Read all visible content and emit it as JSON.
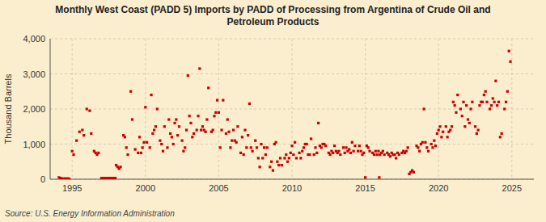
{
  "chart_data": {
    "type": "scatter",
    "title": "Monthly West Coast (PADD 5) Imports by PADD of Processing from Argentina of Crude Oil and\nPetroleum Products",
    "ylabel": "Thousand Barrels",
    "source": "Source: U.S. Energy Information Administration",
    "color": "#cc0000",
    "marker": "square",
    "grid": true,
    "xlim": [
      1993.5,
      2026.5
    ],
    "ylim": [
      0,
      4000
    ],
    "xticks": [
      1995,
      2000,
      2005,
      2010,
      2015,
      2020,
      2025
    ],
    "yticks": [
      0,
      {
        "value": 1000,
        "label": "1,000"
      },
      {
        "value": 2000,
        "label": "2,000"
      },
      {
        "value": 3000,
        "label": "3,000"
      },
      {
        "value": 4000,
        "label": "4,000"
      }
    ],
    "x": [
      1994.1,
      1994.2,
      1994.3,
      1994.4,
      1994.5,
      1994.6,
      1994.7,
      1994.8,
      1995.0,
      1995.1,
      1995.3,
      1995.5,
      1995.7,
      1995.8,
      1996.0,
      1996.2,
      1996.3,
      1996.5,
      1996.6,
      1996.7,
      1996.8,
      1997.0,
      1997.1,
      1997.2,
      1997.3,
      1997.4,
      1997.5,
      1997.6,
      1997.7,
      1997.8,
      1997.9,
      1997.95,
      1998.0,
      1998.1,
      1998.2,
      1998.3,
      1998.5,
      1998.6,
      1998.7,
      1998.8,
      1999.0,
      1999.1,
      1999.3,
      1999.5,
      1999.6,
      1999.7,
      1999.8,
      1999.9,
      2000.0,
      2000.1,
      2000.3,
      2000.4,
      2000.5,
      2000.6,
      2000.7,
      2000.8,
      2001.0,
      2001.1,
      2001.2,
      2001.3,
      2001.5,
      2001.6,
      2001.7,
      2001.8,
      2001.9,
      2002.0,
      2002.1,
      2002.2,
      2002.3,
      2002.5,
      2002.6,
      2002.7,
      2002.8,
      2002.9,
      2003.0,
      2003.1,
      2003.2,
      2003.3,
      2003.5,
      2003.6,
      2003.7,
      2003.8,
      2003.9,
      2004.0,
      2004.1,
      2004.2,
      2004.3,
      2004.5,
      2004.6,
      2004.7,
      2004.8,
      2004.9,
      2005.0,
      2005.1,
      2005.2,
      2005.3,
      2005.5,
      2005.6,
      2005.7,
      2005.8,
      2005.9,
      2006.0,
      2006.1,
      2006.2,
      2006.3,
      2006.5,
      2006.6,
      2006.7,
      2006.8,
      2006.9,
      2007.0,
      2007.1,
      2007.2,
      2007.3,
      2007.5,
      2007.6,
      2007.7,
      2007.8,
      2007.9,
      2008.0,
      2008.1,
      2008.2,
      2008.3,
      2008.5,
      2008.6,
      2008.7,
      2008.8,
      2008.9,
      2009.0,
      2009.1,
      2009.2,
      2009.3,
      2009.5,
      2009.6,
      2009.7,
      2009.8,
      2009.9,
      2010.0,
      2010.1,
      2010.2,
      2010.3,
      2010.5,
      2010.6,
      2010.7,
      2010.8,
      2010.9,
      2011.0,
      2011.1,
      2011.2,
      2011.3,
      2011.5,
      2011.6,
      2011.7,
      2011.8,
      2011.9,
      2012.0,
      2012.1,
      2012.2,
      2012.3,
      2012.5,
      2012.6,
      2012.7,
      2012.8,
      2012.9,
      2013.0,
      2013.1,
      2013.2,
      2013.3,
      2013.5,
      2013.6,
      2013.7,
      2013.8,
      2013.9,
      2014.0,
      2014.1,
      2014.2,
      2014.3,
      2014.5,
      2014.6,
      2014.7,
      2014.8,
      2014.9,
      2015.0,
      2015.1,
      2015.2,
      2015.3,
      2015.5,
      2015.6,
      2015.7,
      2015.8,
      2015.9,
      2015.95,
      2016.0,
      2016.1,
      2016.2,
      2016.3,
      2016.5,
      2016.6,
      2016.7,
      2016.8,
      2016.9,
      2017.0,
      2017.1,
      2017.2,
      2017.3,
      2017.5,
      2017.6,
      2017.7,
      2017.8,
      2017.9,
      2018.0,
      2018.1,
      2018.2,
      2018.3,
      2018.5,
      2018.6,
      2018.7,
      2018.8,
      2018.9,
      2019.0,
      2019.1,
      2019.2,
      2019.3,
      2019.5,
      2019.6,
      2019.7,
      2019.8,
      2019.9,
      2020.0,
      2020.1,
      2020.2,
      2020.3,
      2020.5,
      2020.6,
      2020.7,
      2020.8,
      2020.9,
      2021.0,
      2021.1,
      2021.2,
      2021.3,
      2021.5,
      2021.6,
      2021.7,
      2021.8,
      2021.9,
      2022.0,
      2022.1,
      2022.2,
      2022.3,
      2022.5,
      2022.6,
      2022.7,
      2022.8,
      2022.9,
      2023.0,
      2023.1,
      2023.2,
      2023.3,
      2023.5,
      2023.6,
      2023.7,
      2023.8,
      2023.9,
      2024.0,
      2024.1,
      2024.2,
      2024.3,
      2024.5,
      2024.6,
      2024.7,
      2024.8,
      2024.9
    ],
    "values": [
      50,
      30,
      20,
      10,
      20,
      10,
      20,
      10,
      800,
      700,
      1100,
      1350,
      1400,
      1250,
      2000,
      1950,
      1300,
      800,
      750,
      700,
      750,
      30,
      30,
      30,
      30,
      30,
      30,
      30,
      30,
      30,
      30,
      30,
      400,
      350,
      300,
      350,
      1250,
      1200,
      900,
      700,
      2500,
      1700,
      850,
      750,
      1200,
      750,
      900,
      1050,
      2050,
      1050,
      900,
      2400,
      1300,
      1400,
      1500,
      2000,
      1100,
      1000,
      800,
      1500,
      900,
      1700,
      1300,
      1200,
      1000,
      1600,
      1700,
      1250,
      1500,
      1100,
      800,
      900,
      1400,
      2950,
      1800,
      1600,
      1200,
      1300,
      1400,
      1800,
      3150,
      1400,
      1500,
      1400,
      1350,
      1700,
      2600,
      1350,
      1400,
      1800,
      1900,
      2250,
      1900,
      900,
      1400,
      2250,
      1300,
      1700,
      1350,
      900,
      1100,
      1400,
      1100,
      1050,
      1500,
      750,
      1200,
      700,
      1400,
      900,
      1250,
      2150,
      900,
      800,
      1100,
      900,
      600,
      350,
      1000,
      600,
      900,
      700,
      900,
      350,
      500,
      250,
      1000,
      1050,
      500,
      400,
      600,
      400,
      600,
      700,
      500,
      600,
      750,
      950,
      700,
      1050,
      600,
      750,
      600,
      800,
      900,
      1000,
      1000,
      700,
      700,
      1150,
      700,
      900,
      750,
      1600,
      950,
      900,
      1000,
      1000,
      950,
      750,
      700,
      800,
      750,
      950,
      800,
      750,
      800,
      700,
      900,
      750,
      900,
      800,
      850,
      750,
      1050,
      800,
      950,
      800,
      950,
      800,
      700,
      750,
      50,
      950,
      900,
      800,
      750,
      700,
      800,
      700,
      800,
      50,
      700,
      750,
      800,
      700,
      750,
      700,
      650,
      750,
      700,
      700,
      600,
      750,
      700,
      750,
      800,
      750,
      800,
      900,
      150,
      200,
      250,
      200,
      950,
      900,
      800,
      1000,
      1050,
      2000,
      1050,
      900,
      800,
      1000,
      900,
      1100,
      950,
      1300,
      1400,
      1500,
      1200,
      1350,
      1500,
      1200,
      1350,
      1400,
      1500,
      2200,
      2100,
      1900,
      2400,
      2000,
      1800,
      2200,
      1500,
      2100,
      1700,
      1600,
      2000,
      2200,
      1500,
      1300,
      1400,
      2100,
      2200,
      2200,
      2400,
      2500,
      2200,
      2000,
      2100,
      2300,
      2200,
      2800,
      2100,
      2200,
      1200,
      1300,
      2000,
      2200,
      2500,
      3650,
      3350
    ]
  }
}
